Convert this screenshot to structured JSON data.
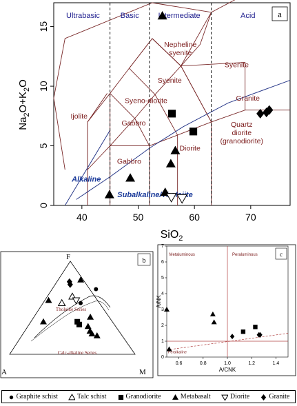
{
  "chart_data": [
    {
      "panel": "a",
      "type": "scatter",
      "xlabel": "SiO2",
      "ylabel": "Na2O+K2O",
      "xlim": [
        35,
        77
      ],
      "ylim": [
        0,
        17
      ],
      "xticks": [
        40,
        50,
        60,
        70
      ],
      "yticks": [
        0,
        5,
        10,
        15
      ],
      "regions": [
        "Ultrabasic",
        "Basic",
        "Intermediate",
        "Acid"
      ],
      "fields": [
        "Nepheline syenite",
        "Syenite",
        "Syenite",
        "Syeno-diorite",
        "Ijolite",
        "Gabbro",
        "Gabbro",
        "Diorite",
        "Granite",
        "Quartz diorite (granodiorite)"
      ],
      "series_labels": [
        "Alkaline",
        "Subalkaline/Tholeiite"
      ],
      "series": [
        {
          "name": "Metabasalt",
          "points": [
            [
              44.9,
              0.9
            ],
            [
              48.6,
              2.3
            ],
            [
              54.8,
              1.1
            ],
            [
              55.8,
              3.5
            ],
            [
              56.6,
              4.6
            ],
            [
              54.3,
              15.9
            ]
          ]
        },
        {
          "name": "Granodiorite",
          "points": [
            [
              56.0,
              7.7
            ],
            [
              59.8,
              6.2
            ]
          ]
        },
        {
          "name": "Diorite",
          "points": [
            [
              55.9,
              0.7
            ],
            [
              57.8,
              0.6
            ]
          ]
        },
        {
          "name": "Granite",
          "points": [
            [
              71.7,
              7.7
            ],
            [
              72.8,
              7.8
            ],
            [
              73.3,
              8.0
            ]
          ]
        }
      ]
    },
    {
      "panel": "b",
      "type": "scatter",
      "vertices": [
        "A",
        "F",
        "M"
      ],
      "fields": [
        "Tholeiite Series",
        "Calc-alkaline Series"
      ],
      "series": [
        {
          "name": "Graphite schist",
          "points": [
            [
              0.55,
              0.3
            ],
            [
              0.7,
              0.35
            ]
          ]
        },
        {
          "name": "Talc schist",
          "points": [
            [
              0.62,
              0.2
            ],
            [
              0.55,
              0.15
            ]
          ]
        },
        {
          "name": "Granodiorite",
          "points": [
            [
              0.35,
              0.37
            ],
            [
              0.32,
              0.4
            ]
          ]
        },
        {
          "name": "Metabasalt",
          "points": [
            [
              0.8,
              0.18
            ],
            [
              0.58,
              0.03
            ],
            [
              0.35,
              0.1
            ],
            [
              0.4,
              0.45
            ],
            [
              0.3,
              0.48
            ],
            [
              0.25,
              0.52
            ],
            [
              0.22,
              0.55
            ],
            [
              0.2,
              0.6
            ]
          ]
        },
        {
          "name": "Diorite",
          "points": [
            [
              0.58,
              0.25
            ]
          ]
        },
        {
          "name": "Granite",
          "points": [
            [
              0.75,
              0.12
            ],
            [
              0.78,
              0.1
            ]
          ]
        }
      ]
    },
    {
      "panel": "c",
      "type": "scatter",
      "xlabel": "A/CNK",
      "ylabel": "A/NK",
      "xlim": [
        0.5,
        1.5
      ],
      "ylim": [
        0,
        7
      ],
      "xticks": [
        0.6,
        0.8,
        1.0,
        1.2,
        1.4
      ],
      "yticks": [
        0,
        1,
        2,
        3,
        4,
        5,
        6,
        7
      ],
      "fields": [
        "Metaluminous",
        "Peraluminous",
        "Peralkaline"
      ],
      "series": [
        {
          "name": "Metabasalt",
          "points": [
            [
              0.5,
              3.0
            ],
            [
              0.52,
              0.5
            ],
            [
              0.88,
              2.7
            ],
            [
              0.89,
              2.2
            ]
          ]
        },
        {
          "name": "Granodiorite",
          "points": [
            [
              1.13,
              1.6
            ],
            [
              1.23,
              1.9
            ]
          ]
        },
        {
          "name": "Granite",
          "points": [
            [
              1.04,
              1.3
            ],
            [
              1.26,
              1.4
            ],
            [
              1.27,
              1.4
            ]
          ]
        }
      ]
    }
  ],
  "legend": [
    {
      "name": "Graphite schist",
      "icon": "filled-circle"
    },
    {
      "name": "Talc schist",
      "icon": "open-triangle"
    },
    {
      "name": "Granodiorite",
      "icon": "filled-square"
    },
    {
      "name": "Metabasalt",
      "icon": "filled-triangle"
    },
    {
      "name": "Diorite",
      "icon": "open-inverted-triangle"
    },
    {
      "name": "Granite",
      "icon": "filled-diamond"
    }
  ],
  "colors": {
    "field_lines": "#7a2a2a",
    "region_labels": "#1a1a8c",
    "series_labels": "#1a3a9a",
    "field_labels": "#7a1a1a"
  }
}
